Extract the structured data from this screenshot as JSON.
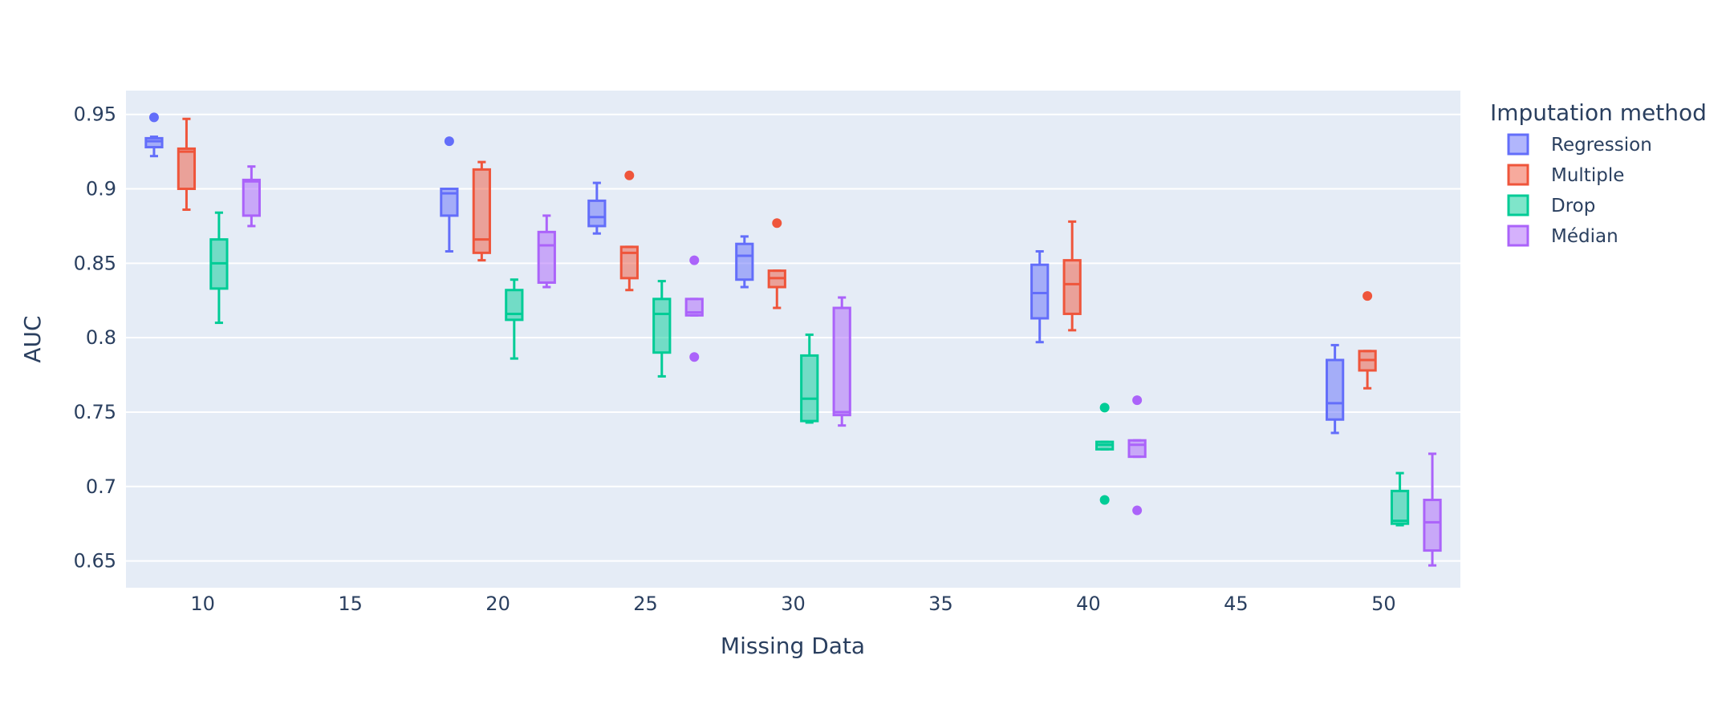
{
  "chart_data": {
    "type": "box",
    "xlabel": "Missing Data",
    "ylabel": "AUC",
    "xlim": [
      7.4,
      52.6
    ],
    "ylim": [
      0.632,
      0.966
    ],
    "x_ticks": [
      10,
      15,
      20,
      25,
      30,
      35,
      40,
      45,
      50
    ],
    "x_tick_labels": [
      "10",
      "15",
      "20",
      "25",
      "30",
      "35",
      "40",
      "45",
      "50"
    ],
    "y_ticks": [
      0.65,
      0.7,
      0.75,
      0.8,
      0.85,
      0.9,
      0.95
    ],
    "y_tick_labels": [
      "0.65",
      "0.7",
      "0.75",
      "0.8",
      "0.85",
      "0.9",
      "0.95"
    ],
    "grid": true,
    "legend": {
      "title": "Imputation method",
      "position": "right"
    },
    "series": [
      {
        "name": "Regression",
        "color": "#636efa",
        "boxes": [
          {
            "x": 10,
            "min": 0.922,
            "q1": 0.928,
            "median": 0.932,
            "q3": 0.934,
            "max": 0.935,
            "outliers": [
              0.948
            ]
          },
          {
            "x": 20,
            "min": 0.858,
            "q1": 0.882,
            "median": 0.897,
            "q3": 0.9,
            "max": 0.9,
            "outliers": [
              0.932
            ]
          },
          {
            "x": 25,
            "min": 0.87,
            "q1": 0.875,
            "median": 0.881,
            "q3": 0.892,
            "max": 0.904,
            "outliers": []
          },
          {
            "x": 30,
            "min": 0.834,
            "q1": 0.839,
            "median": 0.855,
            "q3": 0.863,
            "max": 0.868,
            "outliers": []
          },
          {
            "x": 40,
            "min": 0.797,
            "q1": 0.813,
            "median": 0.83,
            "q3": 0.849,
            "max": 0.858,
            "outliers": []
          },
          {
            "x": 50,
            "min": 0.736,
            "q1": 0.745,
            "median": 0.756,
            "q3": 0.785,
            "max": 0.795,
            "outliers": []
          }
        ]
      },
      {
        "name": "Multiple",
        "color": "#ef553b",
        "boxes": [
          {
            "x": 10,
            "min": 0.886,
            "q1": 0.9,
            "median": 0.925,
            "q3": 0.927,
            "max": 0.947,
            "outliers": []
          },
          {
            "x": 20,
            "min": 0.852,
            "q1": 0.857,
            "median": 0.866,
            "q3": 0.913,
            "max": 0.918,
            "outliers": []
          },
          {
            "x": 25,
            "min": 0.832,
            "q1": 0.84,
            "median": 0.857,
            "q3": 0.861,
            "max": 0.861,
            "outliers": [
              0.909
            ]
          },
          {
            "x": 30,
            "min": 0.82,
            "q1": 0.834,
            "median": 0.84,
            "q3": 0.845,
            "max": 0.845,
            "outliers": [
              0.877
            ]
          },
          {
            "x": 40,
            "min": 0.805,
            "q1": 0.816,
            "median": 0.836,
            "q3": 0.852,
            "max": 0.878,
            "outliers": []
          },
          {
            "x": 50,
            "min": 0.766,
            "q1": 0.778,
            "median": 0.785,
            "q3": 0.791,
            "max": 0.791,
            "outliers": [
              0.828
            ]
          }
        ]
      },
      {
        "name": "Drop",
        "color": "#00cc96",
        "boxes": [
          {
            "x": 10,
            "min": 0.81,
            "q1": 0.833,
            "median": 0.85,
            "q3": 0.866,
            "max": 0.884,
            "outliers": []
          },
          {
            "x": 20,
            "min": 0.786,
            "q1": 0.812,
            "median": 0.816,
            "q3": 0.832,
            "max": 0.839,
            "outliers": []
          },
          {
            "x": 25,
            "min": 0.774,
            "q1": 0.79,
            "median": 0.816,
            "q3": 0.826,
            "max": 0.838,
            "outliers": []
          },
          {
            "x": 30,
            "min": 0.743,
            "q1": 0.744,
            "median": 0.759,
            "q3": 0.788,
            "max": 0.802,
            "outliers": []
          },
          {
            "x": 40,
            "min": 0.725,
            "q1": 0.725,
            "median": 0.728,
            "q3": 0.73,
            "max": 0.73,
            "outliers": [
              0.753,
              0.691
            ]
          },
          {
            "x": 50,
            "min": 0.674,
            "q1": 0.675,
            "median": 0.677,
            "q3": 0.697,
            "max": 0.709,
            "outliers": []
          }
        ]
      },
      {
        "name": "Médian",
        "color": "#ab63fa",
        "boxes": [
          {
            "x": 10,
            "min": 0.875,
            "q1": 0.882,
            "median": 0.905,
            "q3": 0.906,
            "max": 0.915,
            "outliers": []
          },
          {
            "x": 20,
            "min": 0.834,
            "q1": 0.837,
            "median": 0.862,
            "q3": 0.871,
            "max": 0.882,
            "outliers": []
          },
          {
            "x": 25,
            "min": 0.815,
            "q1": 0.815,
            "median": 0.817,
            "q3": 0.826,
            "max": 0.826,
            "outliers": [
              0.852,
              0.787
            ]
          },
          {
            "x": 30,
            "min": 0.741,
            "q1": 0.748,
            "median": 0.75,
            "q3": 0.82,
            "max": 0.827,
            "outliers": []
          },
          {
            "x": 40,
            "min": 0.72,
            "q1": 0.72,
            "median": 0.728,
            "q3": 0.731,
            "max": 0.731,
            "outliers": [
              0.758,
              0.684
            ]
          },
          {
            "x": 50,
            "min": 0.647,
            "q1": 0.657,
            "median": 0.676,
            "q3": 0.691,
            "max": 0.722,
            "outliers": []
          }
        ]
      }
    ]
  }
}
